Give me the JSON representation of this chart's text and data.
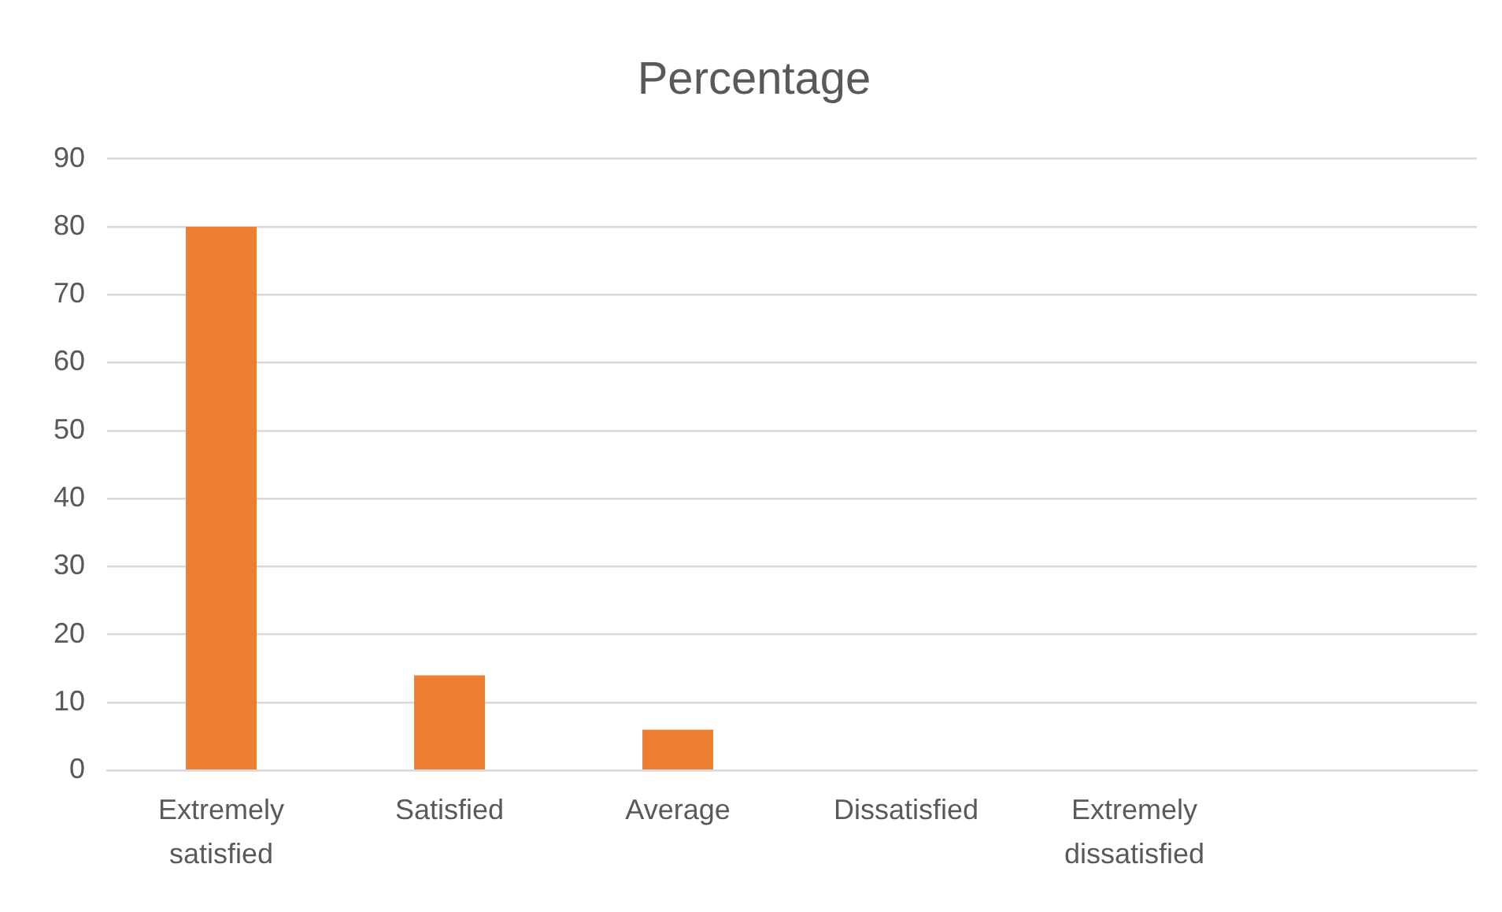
{
  "chart_data": {
    "type": "bar",
    "title": "Percentage",
    "categories": [
      "Extremely satisfied",
      "Satisfied",
      "Average",
      "Dissatisfied",
      "Extremely dissatisfied",
      null
    ],
    "values": [
      80,
      14,
      6,
      0,
      0,
      null
    ],
    "color": "#ed7d31",
    "ylim": [
      0,
      90
    ],
    "yticks": [
      0,
      10,
      20,
      30,
      40,
      50,
      60,
      70,
      80,
      90
    ],
    "grid": "y",
    "legend": false
  }
}
